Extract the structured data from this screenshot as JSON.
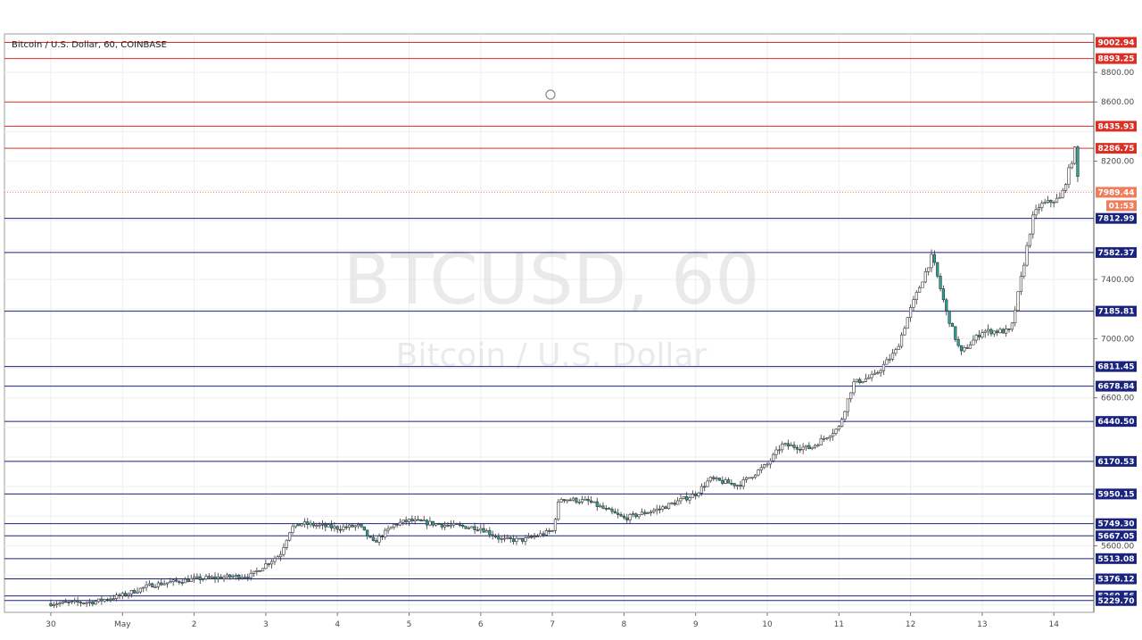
{
  "header": {
    "symbol_title": "Bitcoin / U.S. Dollar, 60, COINBASE"
  },
  "watermark": {
    "symbol": "BTCUSD, 60",
    "description": "Bitcoin / U.S. Dollar"
  },
  "countdown": "01:53",
  "colors": {
    "resistance": "#d93025",
    "support": "#1a237e",
    "current_price": "#ef7d5c",
    "candle_up": "#ffffff",
    "candle_down": "#26a69a"
  },
  "chart_data": {
    "type": "candlestick",
    "title": "Bitcoin / U.S. Dollar, 60, COINBASE",
    "ylim": [
      5150,
      9060
    ],
    "y_ticks": [
      "8800.00",
      "8600.00",
      "8200.00",
      "7400.00",
      "7000.00",
      "6600.00",
      "5600.00"
    ],
    "x_ticks": [
      "30",
      "May",
      "2",
      "3",
      "4",
      "5",
      "6",
      "7",
      "8",
      "9",
      "10",
      "11",
      "12",
      "13",
      "14"
    ],
    "current_price": "7989.44",
    "resistance_levels": [
      "9002.94",
      "8893.25",
      "8435.93",
      "8286.75"
    ],
    "support_levels": [
      "7812.99",
      "7582.37",
      "7185.81",
      "6811.45",
      "6678.84",
      "6440.50",
      "6170.53",
      "5950.15",
      "5749.30",
      "5667.05",
      "5513.08",
      "5376.12",
      "5260.56",
      "5229.70"
    ],
    "drawn_lines": [
      8600
    ],
    "price_path": [
      [
        0,
        5210
      ],
      [
        0.6,
        5220
      ],
      [
        1.0,
        5265
      ],
      [
        1.4,
        5335
      ],
      [
        2.0,
        5375
      ],
      [
        2.8,
        5400
      ],
      [
        3.0,
        5475
      ],
      [
        3.2,
        5540
      ],
      [
        3.35,
        5720
      ],
      [
        3.5,
        5750
      ],
      [
        4.0,
        5720
      ],
      [
        4.3,
        5735
      ],
      [
        4.5,
        5620
      ],
      [
        4.8,
        5745
      ],
      [
        5.0,
        5770
      ],
      [
        5.5,
        5740
      ],
      [
        6.0,
        5720
      ],
      [
        6.3,
        5640
      ],
      [
        6.6,
        5640
      ],
      [
        7.0,
        5700
      ],
      [
        7.1,
        5920
      ],
      [
        7.5,
        5900
      ],
      [
        8.0,
        5785
      ],
      [
        8.5,
        5850
      ],
      [
        9.0,
        5950
      ],
      [
        9.2,
        6050
      ],
      [
        9.6,
        6010
      ],
      [
        10.0,
        6150
      ],
      [
        10.2,
        6280
      ],
      [
        10.6,
        6260
      ],
      [
        11.0,
        6400
      ],
      [
        11.2,
        6700
      ],
      [
        11.5,
        6750
      ],
      [
        11.8,
        6920
      ],
      [
        12.0,
        7200
      ],
      [
        12.3,
        7560
      ],
      [
        12.5,
        7180
      ],
      [
        12.7,
        6900
      ],
      [
        13.0,
        7050
      ],
      [
        13.4,
        7050
      ],
      [
        13.5,
        7300
      ],
      [
        13.7,
        7810
      ],
      [
        13.8,
        7900
      ],
      [
        14.1,
        7950
      ],
      [
        14.3,
        8290
      ],
      [
        14.35,
        7990
      ]
    ]
  }
}
